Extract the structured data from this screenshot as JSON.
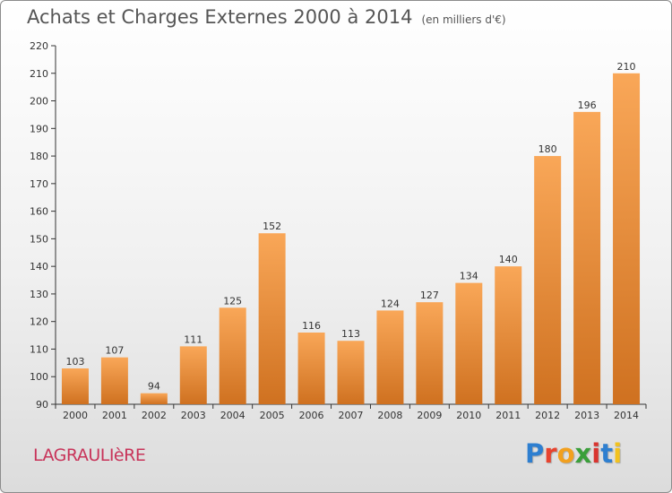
{
  "title": "Achats et Charges Externes 2000 à 2014",
  "subtitle": "(en milliers d'€)",
  "place_label": "LAGRAULIèRE",
  "logo": {
    "letters": [
      "P",
      "r",
      "o",
      "x",
      "i",
      "t",
      "i"
    ],
    "colors": [
      "#2e7fd0",
      "#e8432e",
      "#f2a01e",
      "#3a9f3a",
      "#d9342f",
      "#2e7fd0",
      "#f2c21e"
    ]
  },
  "colors": {
    "bar_light": "#f9a758",
    "bar_dark": "#cf7120",
    "axis": "#333333",
    "grid": "#d0d0d0"
  },
  "chart_data": {
    "type": "bar",
    "categories": [
      "2000",
      "2001",
      "2002",
      "2003",
      "2004",
      "2005",
      "2006",
      "2007",
      "2008",
      "2009",
      "2010",
      "2011",
      "2012",
      "2013",
      "2014"
    ],
    "values": [
      103,
      107,
      94,
      111,
      125,
      152,
      116,
      113,
      124,
      127,
      134,
      140,
      180,
      196,
      210
    ],
    "title": "Achats et Charges Externes 2000 à 2014",
    "subtitle": "(en milliers d'€)",
    "xlabel": "",
    "ylabel": "",
    "ylim": [
      90,
      220
    ],
    "yticks": [
      90,
      100,
      110,
      120,
      130,
      140,
      150,
      160,
      170,
      180,
      190,
      200,
      210,
      220
    ],
    "grid": false,
    "legend": "none",
    "data_labels": true
  }
}
